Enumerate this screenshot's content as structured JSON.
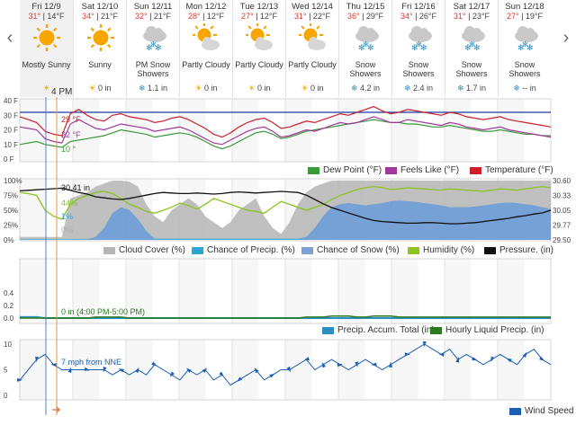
{
  "nav": {
    "prev": "‹",
    "next": "›"
  },
  "marker_label": "4 PM",
  "days": [
    {
      "date": "Fri 12/9",
      "high": "31°",
      "low": "14°F",
      "cond": "Mostly Sunny",
      "precip": "",
      "icon": "sun-icon"
    },
    {
      "date": "Sat 12/10",
      "high": "34°",
      "low": "21°F",
      "cond": "Sunny",
      "precip": "0 in",
      "icon": "sun-icon"
    },
    {
      "date": "Sun 12/11",
      "high": "32°",
      "low": "21°F",
      "cond": "PM Snow Showers",
      "precip": "1.1 in",
      "icon": "snow-cloud-icon"
    },
    {
      "date": "Mon 12/12",
      "high": "28°",
      "low": "12°F",
      "cond": "Partly Cloudy",
      "precip": "0 in",
      "icon": "partly-cloudy-icon"
    },
    {
      "date": "Tue 12/13",
      "high": "27°",
      "low": "12°F",
      "cond": "Partly Cloudy",
      "precip": "0 in",
      "icon": "partly-cloudy-icon"
    },
    {
      "date": "Wed 12/14",
      "high": "31°",
      "low": "22°F",
      "cond": "Partly Cloudy",
      "precip": "0 in",
      "icon": "partly-cloudy-icon"
    },
    {
      "date": "Thu 12/15",
      "high": "36°",
      "low": "29°F",
      "cond": "Snow Showers",
      "precip": "4.2 in",
      "icon": "snow-cloud-icon"
    },
    {
      "date": "Fri 12/16",
      "high": "34°",
      "low": "26°F",
      "cond": "Snow Showers",
      "precip": "2.4 in",
      "icon": "snow-cloud-icon"
    },
    {
      "date": "Sat 12/17",
      "high": "31°",
      "low": "23°F",
      "cond": "Snow Showers",
      "precip": "1.7 in",
      "icon": "snow-cloud-icon"
    },
    {
      "date": "Sun 12/18",
      "high": "27°",
      "low": "19°F",
      "cond": "Snow Showers",
      "precip": "-- in",
      "icon": "snow-cloud-icon"
    }
  ],
  "chart_data": [
    {
      "type": "line",
      "ylim": [
        0,
        40
      ],
      "yticks": [
        "40 F",
        "30 F",
        "20 F",
        "10 F",
        "0 F"
      ],
      "annotations": [
        "29 °F",
        "22 °F",
        "10 °"
      ],
      "series": [
        {
          "name": "Temperature (°F)",
          "color": "#cc1f2a",
          "values": [
            29,
            27,
            25,
            19,
            17,
            16,
            31,
            34,
            30,
            27,
            26,
            30,
            31,
            29,
            28,
            27,
            25,
            26,
            28,
            29,
            27,
            24,
            21,
            17,
            15,
            18,
            22,
            25,
            27,
            28,
            25,
            21,
            22,
            24,
            26,
            25,
            27,
            29,
            31,
            30,
            32,
            34,
            36,
            33,
            31,
            32,
            34,
            33,
            32,
            31,
            30,
            32,
            31,
            29,
            28,
            27,
            28,
            29,
            27,
            26,
            25,
            24,
            23,
            22
          ]
        },
        {
          "name": "Feels Like (°F)",
          "color": "#a2389b",
          "values": [
            22,
            21,
            20,
            14,
            12,
            11,
            24,
            27,
            24,
            21,
            20,
            22,
            24,
            23,
            22,
            21,
            19,
            20,
            21,
            22,
            20,
            17,
            14,
            11,
            10,
            13,
            16,
            19,
            21,
            22,
            19,
            15,
            16,
            18,
            20,
            19,
            21,
            23,
            25,
            24,
            25,
            27,
            29,
            27,
            25,
            25,
            27,
            26,
            25,
            24,
            23,
            25,
            24,
            22,
            21,
            20,
            21,
            22,
            20,
            19,
            18,
            17,
            16,
            15
          ]
        },
        {
          "name": "Dew Point (°F)",
          "color": "#3a9a3a",
          "values": [
            10,
            11,
            12,
            10,
            9,
            8,
            12,
            13,
            14,
            15,
            16,
            18,
            20,
            19,
            18,
            17,
            15,
            16,
            17,
            18,
            17,
            15,
            12,
            9,
            7,
            9,
            12,
            15,
            18,
            19,
            17,
            14,
            15,
            17,
            19,
            20,
            21,
            22,
            23,
            24,
            25,
            26,
            27,
            26,
            25,
            25,
            24,
            24,
            23,
            22,
            22,
            23,
            22,
            21,
            20,
            19,
            19,
            20,
            19,
            18,
            17,
            17,
            16,
            16
          ]
        }
      ]
    },
    {
      "type": "area",
      "ylim": [
        0,
        100
      ],
      "yticks": [
        "100%",
        "75%",
        "50%",
        "25%",
        "0%"
      ],
      "y2ticks": [
        "30.60",
        "30.33",
        "30.05",
        "29.77",
        "29.50"
      ],
      "annotations": [
        "30.41 in",
        "44%",
        "1%",
        "0%"
      ],
      "series": [
        {
          "name": "Cloud Cover (%)",
          "color": "#b5b5b5",
          "values": [
            5,
            5,
            5,
            5,
            5,
            5,
            70,
            75,
            80,
            90,
            95,
            100,
            100,
            98,
            90,
            60,
            40,
            30,
            50,
            60,
            70,
            60,
            40,
            30,
            20,
            30,
            50,
            60,
            70,
            40,
            20,
            10,
            30,
            60,
            80,
            90,
            95,
            100,
            100,
            100,
            100,
            100,
            100,
            100,
            100,
            100,
            100,
            100,
            100,
            100,
            100,
            100,
            100,
            100,
            100,
            100,
            100,
            100,
            100,
            100,
            100,
            100,
            100,
            100
          ]
        },
        {
          "name": "Chance of Precip. (%)",
          "color": "#2aa7d6",
          "values": [
            1,
            1,
            1,
            1,
            1,
            1,
            1,
            1,
            1,
            5,
            20,
            45,
            55,
            50,
            35,
            15,
            2,
            2,
            2,
            2,
            2,
            2,
            2,
            2,
            2,
            2,
            2,
            2,
            2,
            2,
            2,
            2,
            2,
            2,
            5,
            20,
            40,
            55,
            60,
            62,
            60,
            58,
            60,
            62,
            65,
            66,
            65,
            64,
            62,
            60,
            58,
            55,
            55,
            55,
            56,
            58,
            60,
            62,
            63,
            62,
            60,
            58,
            55,
            52
          ]
        },
        {
          "name": "Chance of Snow (%)",
          "color": "#7f9fd6",
          "values": [
            0,
            0,
            0,
            0,
            0,
            0,
            0,
            0,
            0,
            5,
            20,
            45,
            55,
            50,
            35,
            15,
            0,
            0,
            0,
            0,
            0,
            0,
            0,
            0,
            0,
            0,
            0,
            0,
            0,
            0,
            0,
            0,
            0,
            0,
            5,
            20,
            40,
            55,
            60,
            62,
            60,
            58,
            60,
            62,
            65,
            66,
            65,
            64,
            62,
            60,
            58,
            55,
            55,
            55,
            56,
            58,
            60,
            62,
            63,
            62,
            60,
            58,
            55,
            52
          ]
        },
        {
          "name": "Humidity (%)",
          "color": "#8bc41e",
          "values": [
            80,
            78,
            75,
            50,
            40,
            35,
            60,
            70,
            75,
            80,
            82,
            78,
            70,
            60,
            55,
            48,
            45,
            50,
            55,
            62,
            58,
            52,
            60,
            70,
            65,
            60,
            55,
            50,
            48,
            45,
            55,
            65,
            60,
            55,
            50,
            55,
            60,
            68,
            75,
            80,
            85,
            88,
            90,
            88,
            85,
            86,
            88,
            87,
            86,
            85,
            84,
            86,
            85,
            84,
            83,
            82,
            84,
            86,
            85,
            84,
            86,
            88,
            90,
            88
          ]
        },
        {
          "name": "Pressure. (in)",
          "color": "#111111",
          "values": [
            30.41,
            30.42,
            30.43,
            30.44,
            30.45,
            30.46,
            30.42,
            30.38,
            30.35,
            30.3,
            30.28,
            30.26,
            30.25,
            30.27,
            30.3,
            30.33,
            30.36,
            30.38,
            30.37,
            30.36,
            30.36,
            30.37,
            30.36,
            30.35,
            30.36,
            30.38,
            30.39,
            30.38,
            30.37,
            30.38,
            30.39,
            30.4,
            30.39,
            30.38,
            30.33,
            30.25,
            30.17,
            30.1,
            30.05,
            30.0,
            29.95,
            29.9,
            29.86,
            29.84,
            29.83,
            29.82,
            29.81,
            29.81,
            29.82,
            29.82,
            29.81,
            29.8,
            29.8,
            29.81,
            29.82,
            29.84,
            29.86,
            29.88,
            29.9,
            29.93,
            29.95,
            29.98,
            30.0,
            30.05
          ]
        }
      ]
    },
    {
      "type": "bar",
      "ylim": [
        0,
        0.5
      ],
      "yticks": [
        "0.4",
        "0.2",
        "0.0"
      ],
      "annotations": [
        "0 in (4:00 PM-5:00 PM)"
      ],
      "series": [
        {
          "name": "Precip. Accum. Total (in)",
          "color": "#2a8fc1",
          "values": [
            0.01,
            0.01,
            0.01,
            0,
            0,
            0,
            0,
            0,
            0,
            0,
            0,
            0,
            0,
            0,
            0,
            0,
            0,
            0,
            0,
            0,
            0,
            0,
            0,
            0,
            0,
            0,
            0,
            0,
            0,
            0,
            0,
            0,
            0,
            0,
            0,
            0,
            0,
            0,
            0,
            0,
            0,
            0,
            0,
            0,
            0,
            0,
            0,
            0,
            0,
            0,
            0,
            0,
            0,
            0,
            0,
            0,
            0,
            0,
            0,
            0,
            0,
            0,
            0,
            0
          ]
        },
        {
          "name": "Hourly Liquid Precip. (in)",
          "color": "#2a7a1e",
          "values": [
            0,
            0,
            0,
            0,
            0,
            0,
            0,
            0,
            0,
            0.01,
            0.01,
            0.01,
            0.01,
            0,
            0,
            0,
            0,
            0,
            0,
            0,
            0,
            0,
            0,
            0,
            0,
            0,
            0,
            0,
            0,
            0,
            0,
            0,
            0,
            0,
            0.01,
            0.01,
            0.01,
            0.02,
            0.02,
            0.02,
            0.01,
            0.01,
            0.02,
            0.02,
            0.02,
            0.01,
            0.01,
            0.01,
            0.01,
            0.01,
            0.01,
            0.01,
            0.01,
            0.01,
            0.01,
            0.01,
            0.01,
            0.01,
            0.01,
            0.01,
            0.01,
            0.01,
            0.01,
            0.01
          ]
        }
      ]
    },
    {
      "type": "line",
      "ylim": [
        0,
        10
      ],
      "yticks": [
        "10",
        "5",
        "0"
      ],
      "annotations": [
        "7 mph from NNE"
      ],
      "series": [
        {
          "name": "Wind Speed",
          "color": "#1a5fb4",
          "values": [
            3,
            5,
            7,
            8,
            6,
            5,
            5,
            5,
            5,
            5,
            5,
            4,
            5,
            4,
            5,
            4,
            6,
            5,
            4,
            3,
            5,
            4,
            5,
            3,
            4,
            2,
            3,
            4,
            5,
            3,
            4,
            5,
            5,
            6,
            7,
            5,
            6,
            7,
            6,
            5,
            6,
            7,
            6,
            5,
            6,
            7,
            8,
            9,
            10,
            9,
            8,
            9,
            7,
            8,
            7,
            6,
            7,
            8,
            7,
            6,
            8,
            9,
            7,
            6
          ]
        }
      ]
    }
  ]
}
